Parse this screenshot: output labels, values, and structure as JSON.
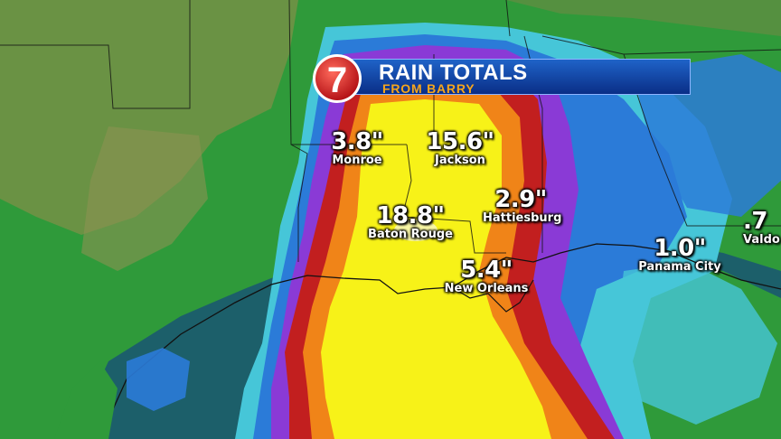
{
  "header": {
    "logo_text": "7",
    "title": "RAIN TOTALS",
    "subtitle": "FROM BARRY"
  },
  "colors": {
    "green": "#2e9a3a",
    "cyan": "#44c6d8",
    "blue": "#2a7ad8",
    "purple": "#8a3ad6",
    "red": "#c01e1e",
    "orange": "#f08418",
    "yellow": "#f7f218",
    "banner_blue": "#1a54c0",
    "subtitle_orange": "#f6a61c"
  },
  "rain_totals": [
    {
      "value": "3.8\"",
      "city": "Monroe"
    },
    {
      "value": "15.6\"",
      "city": "Jackson"
    },
    {
      "value": "18.8\"",
      "city": "Baton Rouge"
    },
    {
      "value": "2.9\"",
      "city": "Hattiesburg"
    },
    {
      "value": "5.4\"",
      "city": "New Orleans"
    },
    {
      "value": "1.0\"",
      "city": "Panama City"
    },
    {
      "value": ".7",
      "city": "Valdo"
    }
  ]
}
